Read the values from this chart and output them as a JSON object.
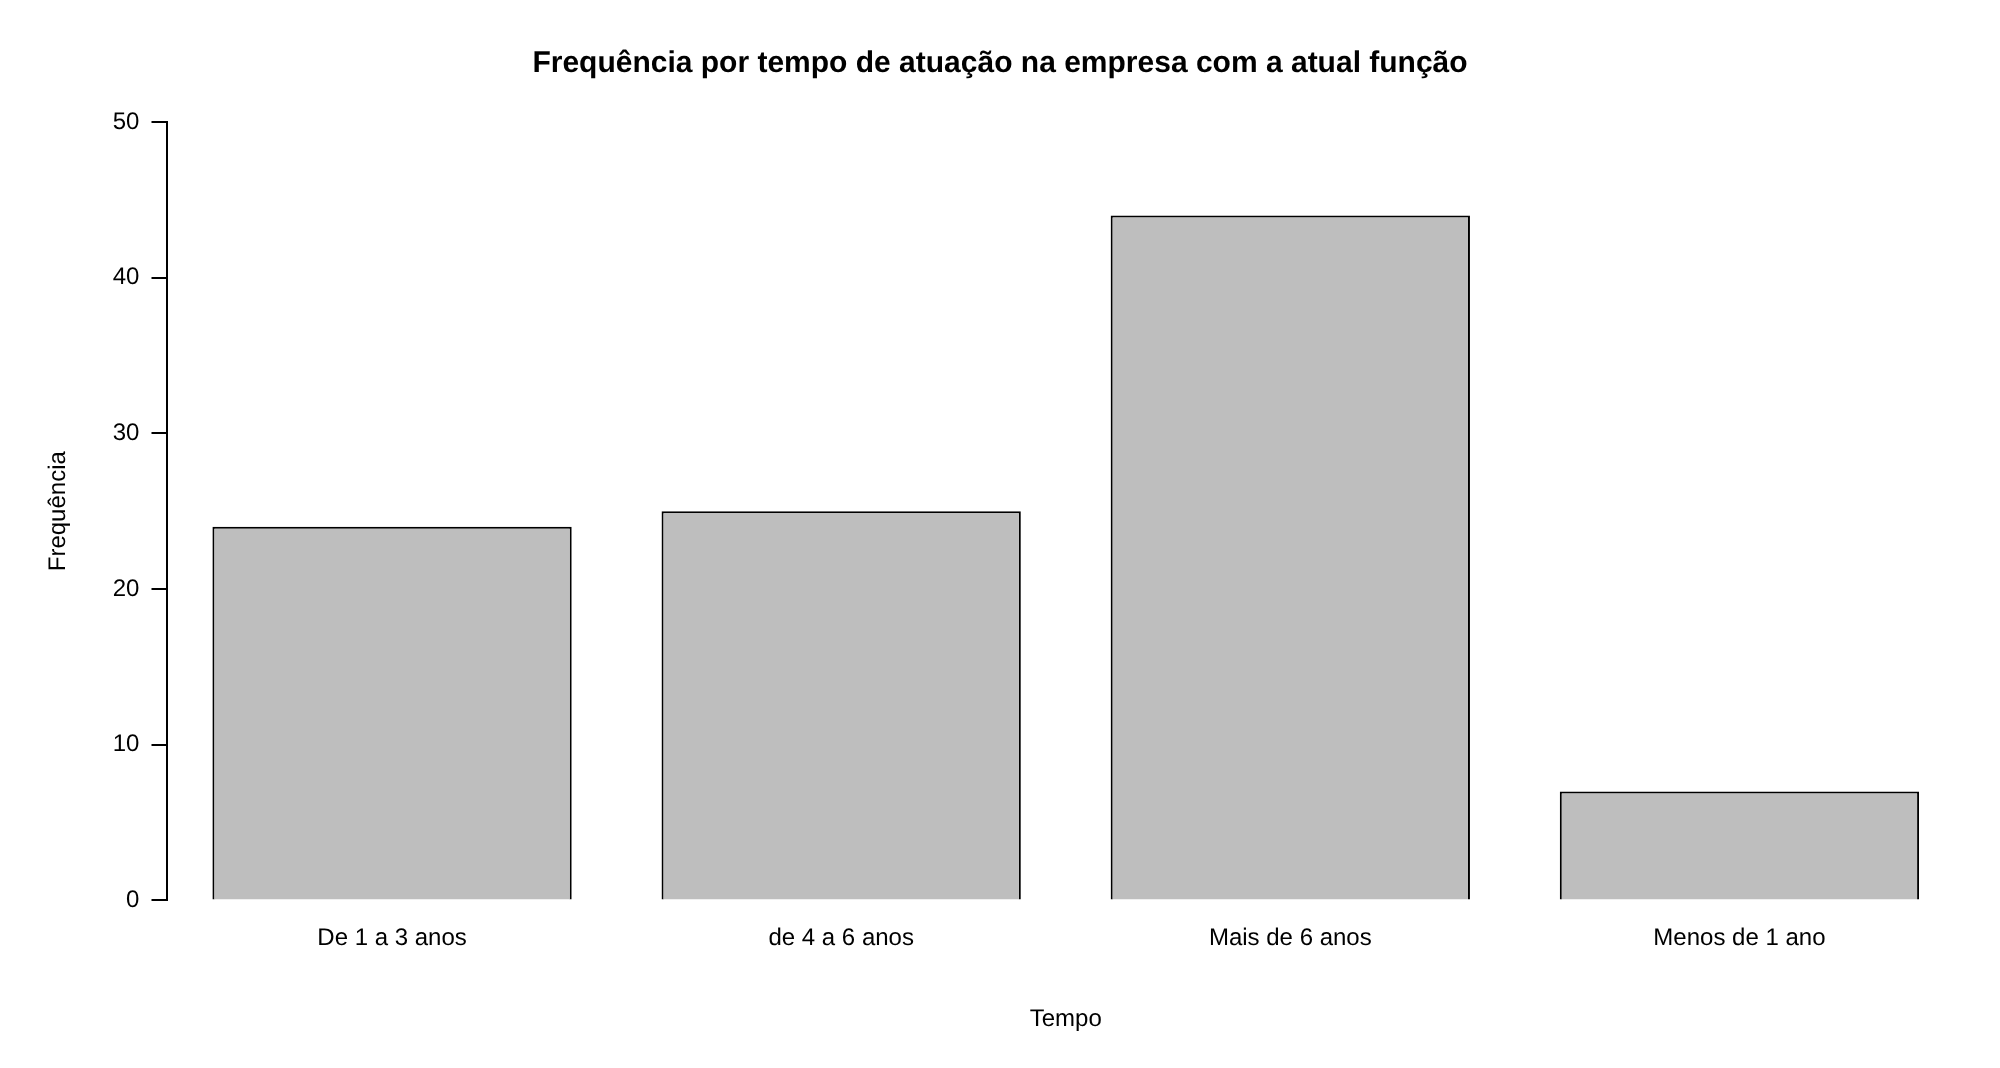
{
  "chart_data": {
    "type": "bar",
    "title": "Frequência por tempo de atuação na empresa com a atual função",
    "xlabel": "Tempo",
    "ylabel": "Frequência",
    "categories": [
      "De 1 a 3 anos",
      "de 4 a 6 anos",
      "Mais de 6 anos",
      "Menos de 1 ano"
    ],
    "values": [
      24,
      25,
      44,
      7
    ],
    "color": "#bebebe",
    "ylim": [
      0,
      50
    ],
    "yticks": [
      0,
      10,
      20,
      30,
      40,
      50
    ],
    "grid": false,
    "legend": false
  }
}
